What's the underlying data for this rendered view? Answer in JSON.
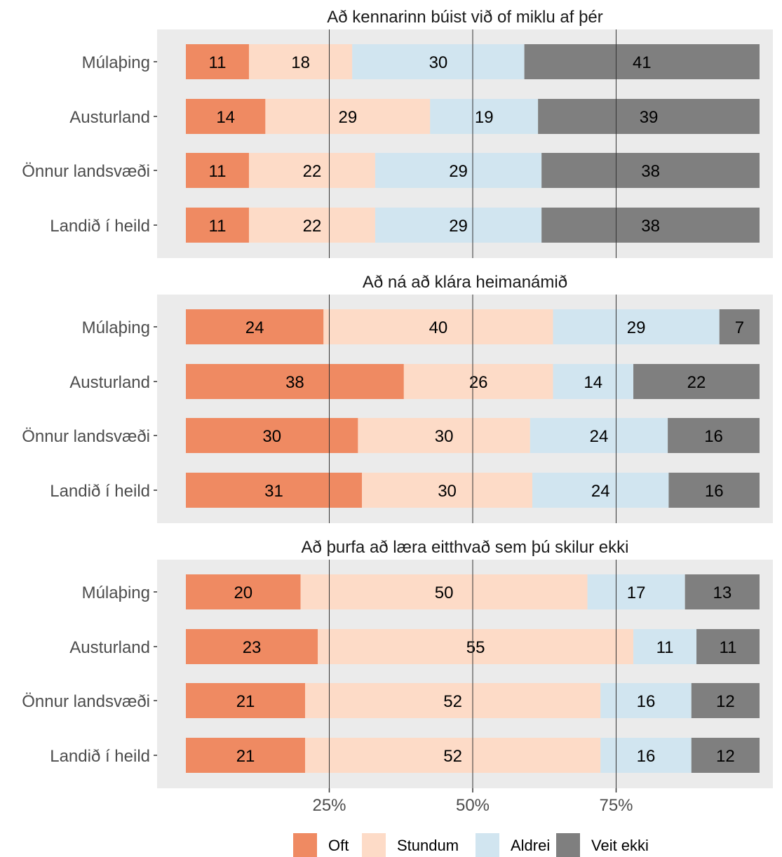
{
  "colors": {
    "Oft": "#ef8a62",
    "Stundum": "#fddbc7",
    "Aldrei": "#d1e5f0",
    "Veit ekki": "#7f7f7f",
    "panel_bg": "#ebebeb"
  },
  "chart_data": {
    "type": "bar",
    "orientation": "horizontal",
    "stacked": "percent",
    "categories": [
      "Múlaþing",
      "Austurland",
      "Önnur landsvæði",
      "Landið í heild"
    ],
    "series_names": [
      "Oft",
      "Stundum",
      "Aldrei",
      "Veit ekki"
    ],
    "x_ticks": [
      "25%",
      "50%",
      "75%"
    ],
    "x_tick_values": [
      25,
      50,
      75
    ],
    "xlim": [
      0,
      100
    ],
    "grid": "vertical major lines at 25%, 50%, 75%",
    "legend_position": "bottom",
    "panels": [
      {
        "title": "Að kennarinn búist við of miklu af þér",
        "rows": [
          {
            "category": "Múlaþing",
            "values": [
              11,
              18,
              30,
              41
            ]
          },
          {
            "category": "Austurland",
            "values": [
              14,
              29,
              19,
              39
            ]
          },
          {
            "category": "Önnur landsvæði",
            "values": [
              11,
              22,
              29,
              38
            ]
          },
          {
            "category": "Landið í heild",
            "values": [
              11,
              22,
              29,
              38
            ]
          }
        ]
      },
      {
        "title": "Að ná að klára heimanámið",
        "rows": [
          {
            "category": "Múlaþing",
            "values": [
              24,
              40,
              29,
              7
            ]
          },
          {
            "category": "Austurland",
            "values": [
              38,
              26,
              14,
              22
            ]
          },
          {
            "category": "Önnur landsvæði",
            "values": [
              30,
              30,
              24,
              16
            ]
          },
          {
            "category": "Landið í heild",
            "values": [
              31,
              30,
              24,
              16
            ]
          }
        ]
      },
      {
        "title": "Að þurfa að læra eitthvað sem þú skilur ekki",
        "rows": [
          {
            "category": "Múlaþing",
            "values": [
              20,
              50,
              17,
              13
            ]
          },
          {
            "category": "Austurland",
            "values": [
              23,
              55,
              11,
              11
            ]
          },
          {
            "category": "Önnur landsvæði",
            "values": [
              21,
              52,
              16,
              12
            ]
          },
          {
            "category": "Landið í heild",
            "values": [
              21,
              52,
              16,
              12
            ]
          }
        ]
      }
    ]
  }
}
